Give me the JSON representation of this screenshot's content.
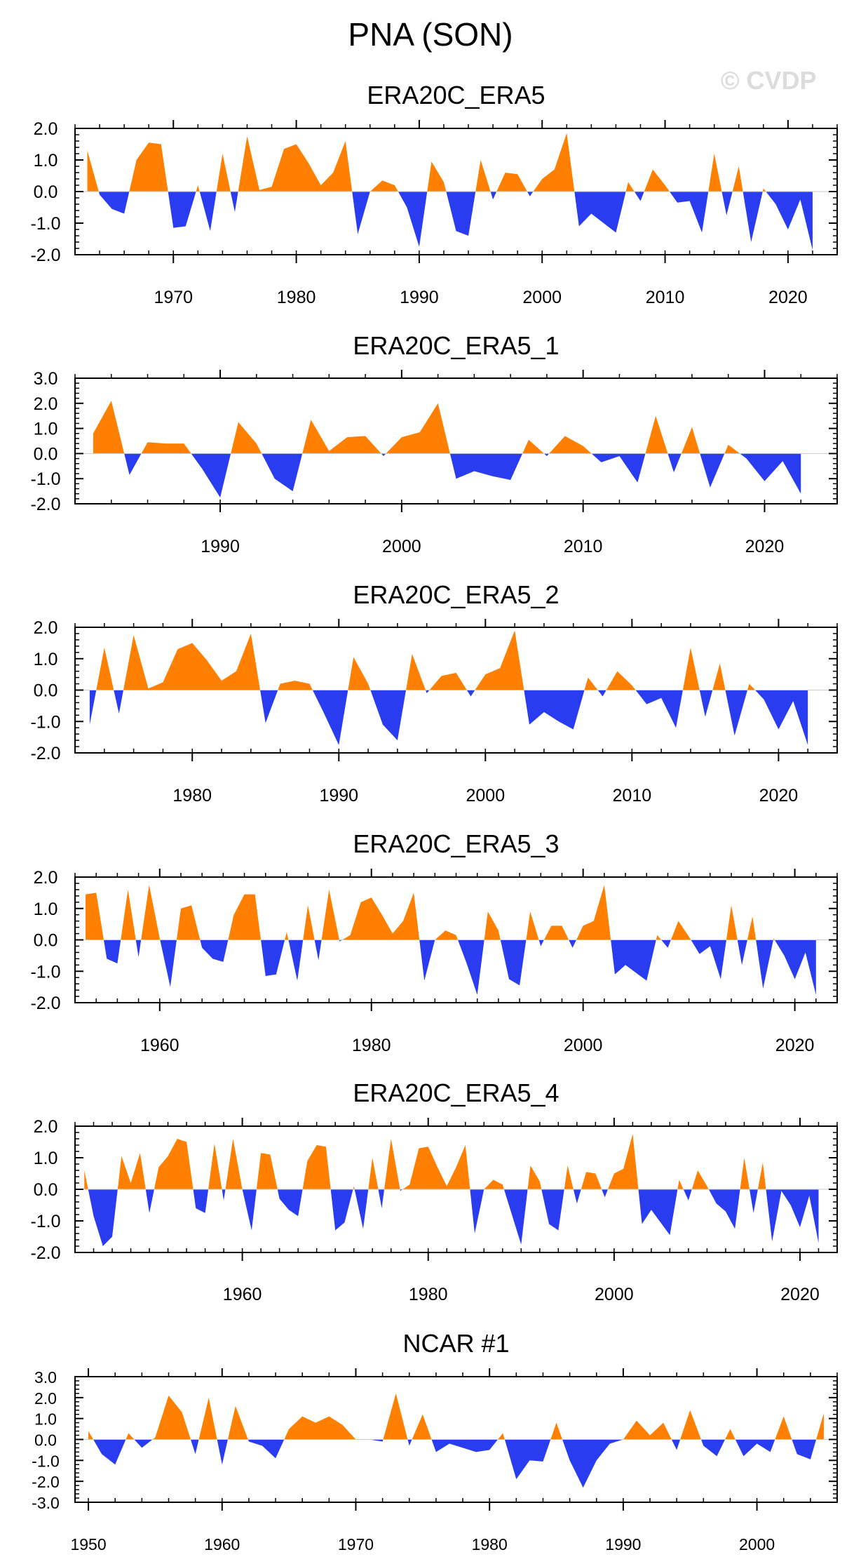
{
  "figure": {
    "title": "PNA (SON)",
    "watermark": "© CVDP",
    "colors": {
      "positive": "#ff8000",
      "negative": "#2a3cf0",
      "axis": "#000000",
      "background": "#ffffff"
    }
  },
  "chart_data": [
    {
      "type": "area",
      "title": "ERA20C_ERA5",
      "xlabel": "",
      "ylabel": "",
      "xlim": [
        1962,
        2024
      ],
      "ylim": [
        -2.0,
        2.0
      ],
      "y_ticks": [
        -2.0,
        -1.0,
        0.0,
        1.0,
        2.0
      ],
      "y_tick_labels": [
        "-2.0",
        "-1.0",
        "0.0",
        "1.0",
        "2.0"
      ],
      "x_ticks": [
        1970,
        1980,
        1990,
        2000,
        2010,
        2020
      ],
      "x_tick_labels": [
        "1970",
        "1980",
        "1990",
        "2000",
        "2010",
        "2020"
      ],
      "x_start": 1963,
      "values": [
        1.3,
        -0.1,
        -0.55,
        -0.7,
        1.0,
        1.55,
        1.5,
        -1.15,
        -1.1,
        0.2,
        -1.25,
        1.2,
        -0.65,
        1.75,
        0.05,
        0.15,
        1.35,
        1.5,
        0.9,
        0.2,
        0.6,
        1.6,
        -1.35,
        0.0,
        0.35,
        0.2,
        -0.5,
        -1.75,
        0.95,
        0.3,
        -1.25,
        -1.4,
        1.0,
        -0.25,
        0.6,
        0.55,
        -0.15,
        0.4,
        0.7,
        1.85,
        -1.1,
        -0.7,
        -1.0,
        -1.3,
        0.3,
        -0.3,
        0.7,
        0.2,
        -0.35,
        -0.3,
        -1.3,
        1.2,
        -0.75,
        0.8,
        -1.6,
        0.1,
        -0.4,
        -1.2,
        -0.25,
        -1.85
      ]
    },
    {
      "type": "area",
      "title": "ERA20C_ERA5_1",
      "xlabel": "",
      "ylabel": "",
      "xlim": [
        1982,
        2024
      ],
      "ylim": [
        -2.0,
        3.0
      ],
      "y_ticks": [
        -2.0,
        -1.0,
        0.0,
        1.0,
        2.0,
        3.0
      ],
      "y_tick_labels": [
        "-2.0",
        "-1.0",
        "0.0",
        "1.0",
        "2.0",
        "3.0"
      ],
      "x_ticks": [
        1990,
        2000,
        2010,
        2020
      ],
      "x_tick_labels": [
        "1990",
        "2000",
        "2010",
        "2020"
      ],
      "x_start": 1983,
      "values": [
        0.8,
        2.1,
        -0.85,
        0.45,
        0.4,
        0.4,
        -0.6,
        -1.75,
        1.25,
        0.4,
        -1.0,
        -1.5,
        1.35,
        0.1,
        0.65,
        0.7,
        -0.1,
        0.65,
        0.85,
        2.0,
        -1.0,
        -0.7,
        -0.9,
        -1.05,
        0.55,
        -0.1,
        0.7,
        0.3,
        -0.35,
        -0.1,
        -1.15,
        1.5,
        -0.75,
        1.05,
        -1.35,
        0.35,
        -0.2,
        -1.1,
        -0.3,
        -1.6
      ]
    },
    {
      "type": "area",
      "title": "ERA20C_ERA5_2",
      "xlabel": "",
      "ylabel": "",
      "xlim": [
        1972,
        2024
      ],
      "ylim": [
        -2.0,
        2.0
      ],
      "y_ticks": [
        -2.0,
        -1.0,
        0.0,
        1.0,
        2.0
      ],
      "y_tick_labels": [
        "-2.0",
        "-1.0",
        "0.0",
        "1.0",
        "2.0"
      ],
      "x_ticks": [
        1980,
        1990,
        2000,
        2010,
        2020
      ],
      "x_tick_labels": [
        "1980",
        "1990",
        "2000",
        "2010",
        "2020"
      ],
      "x_start": 1973,
      "values": [
        -1.1,
        1.35,
        -0.75,
        1.75,
        0.05,
        0.25,
        1.3,
        1.5,
        0.95,
        0.3,
        0.6,
        1.8,
        -1.05,
        0.2,
        0.3,
        0.2,
        -0.75,
        -1.75,
        1.05,
        0.2,
        -1.1,
        -1.6,
        1.15,
        -0.1,
        0.45,
        0.55,
        -0.2,
        0.5,
        0.7,
        1.9,
        -1.1,
        -0.7,
        -1.0,
        -1.25,
        0.4,
        -0.2,
        0.6,
        0.15,
        -0.45,
        -0.25,
        -1.2,
        1.35,
        -0.85,
        0.85,
        -1.45,
        0.2,
        -0.3,
        -1.25,
        -0.35,
        -1.75
      ]
    },
    {
      "type": "area",
      "title": "ERA20C_ERA5_3",
      "xlabel": "",
      "ylabel": "",
      "xlim": [
        1952,
        2024
      ],
      "ylim": [
        -2.0,
        2.0
      ],
      "y_ticks": [
        -2.0,
        -1.0,
        0.0,
        1.0,
        2.0
      ],
      "y_tick_labels": [
        "-2.0",
        "-1.0",
        "0.0",
        "1.0",
        "2.0"
      ],
      "x_ticks": [
        1960,
        1980,
        2000,
        2020
      ],
      "x_tick_labels": [
        "1960",
        "1980",
        "2000",
        "2020"
      ],
      "x_start": 1953,
      "values": [
        1.45,
        1.5,
        -0.6,
        -0.75,
        1.6,
        -0.55,
        1.75,
        0.05,
        -1.5,
        1.0,
        1.1,
        -0.25,
        -0.6,
        -0.7,
        0.8,
        1.45,
        1.45,
        -1.15,
        -1.1,
        0.25,
        -1.3,
        1.1,
        -0.65,
        1.6,
        -0.05,
        0.15,
        1.2,
        1.35,
        0.8,
        0.2,
        0.6,
        1.5,
        -1.3,
        0.0,
        0.3,
        0.15,
        -0.75,
        -1.75,
        0.9,
        0.3,
        -1.25,
        -1.45,
        0.9,
        -0.2,
        0.45,
        0.45,
        -0.25,
        0.45,
        0.6,
        1.75,
        -1.1,
        -0.8,
        -1.05,
        -1.3,
        0.15,
        -0.25,
        0.6,
        0.1,
        -0.45,
        -0.2,
        -1.25,
        1.1,
        -0.8,
        0.75,
        -1.55,
        0.05,
        -0.5,
        -1.25,
        -0.4,
        -1.75
      ]
    },
    {
      "type": "area",
      "title": "ERA20C_ERA5_4",
      "xlabel": "",
      "ylabel": "",
      "xlim": [
        1942,
        2024
      ],
      "ylim": [
        -2.0,
        2.0
      ],
      "y_ticks": [
        -2.0,
        -1.0,
        0.0,
        1.0,
        2.0
      ],
      "y_tick_labels": [
        "-2.0",
        "-1.0",
        "0.0",
        "1.0",
        "2.0"
      ],
      "x_ticks": [
        1960,
        1980,
        2000,
        2020
      ],
      "x_tick_labels": [
        "1960",
        "1980",
        "2000",
        "2020"
      ],
      "x_start": 1943,
      "values": [
        0.6,
        -0.85,
        -1.8,
        -1.5,
        1.05,
        0.2,
        1.15,
        -0.75,
        0.7,
        1.05,
        1.6,
        1.5,
        -0.6,
        -0.75,
        1.45,
        -0.35,
        1.6,
        0.0,
        -1.3,
        1.15,
        1.1,
        -0.3,
        -0.65,
        -0.85,
        0.9,
        1.4,
        1.35,
        -1.3,
        -1.05,
        0.1,
        -1.25,
        1.0,
        -0.6,
        1.6,
        -0.05,
        0.15,
        1.3,
        1.35,
        0.7,
        0.1,
        0.7,
        1.4,
        -1.4,
        0.0,
        0.3,
        0.15,
        -0.8,
        -1.75,
        0.75,
        0.25,
        -1.1,
        -1.3,
        0.75,
        -0.45,
        0.55,
        0.5,
        -0.25,
        0.5,
        0.65,
        1.75,
        -1.1,
        -0.65,
        -1.05,
        -1.45,
        0.3,
        -0.35,
        0.6,
        0.1,
        -0.45,
        -0.7,
        -1.25,
        1.0,
        -0.75,
        0.85,
        -1.65,
        -0.05,
        -0.5,
        -1.2,
        -0.2,
        -1.7
      ]
    },
    {
      "type": "area",
      "title": "NCAR #1",
      "xlabel": "",
      "ylabel": "",
      "xlim": [
        1949,
        2006
      ],
      "ylim": [
        -3.0,
        3.0
      ],
      "y_ticks": [
        -3.0,
        -2.0,
        -1.0,
        0.0,
        1.0,
        2.0,
        3.0
      ],
      "y_tick_labels": [
        "-3.0",
        "-2.0",
        "-1.0",
        "0.0",
        "1.0",
        "2.0",
        "3.0"
      ],
      "x_ticks": [
        1950,
        1960,
        1970,
        1980,
        1990,
        2000
      ],
      "x_tick_labels": [
        "1950",
        "1960",
        "1970",
        "1980",
        "1990",
        "2000"
      ],
      "x_start": 1950,
      "values": [
        0.4,
        -0.7,
        -1.2,
        0.3,
        -0.4,
        0.1,
        2.1,
        1.3,
        -0.7,
        2.0,
        -1.2,
        1.6,
        -0.1,
        -0.3,
        -0.9,
        0.5,
        1.1,
        0.8,
        1.1,
        0.7,
        0.0,
        0.0,
        -0.1,
        2.2,
        -0.3,
        1.2,
        -0.6,
        -0.2,
        -0.4,
        -0.6,
        -0.5,
        0.3,
        -1.9,
        -1.0,
        -1.05,
        0.8,
        -1.0,
        -2.3,
        -1.0,
        -0.2,
        0.0,
        0.9,
        0.2,
        0.8,
        -0.5,
        1.4,
        -0.3,
        -0.8,
        0.5,
        -0.8,
        -0.2,
        -0.6,
        1.1,
        -0.7,
        -0.95,
        1.25
      ]
    }
  ]
}
